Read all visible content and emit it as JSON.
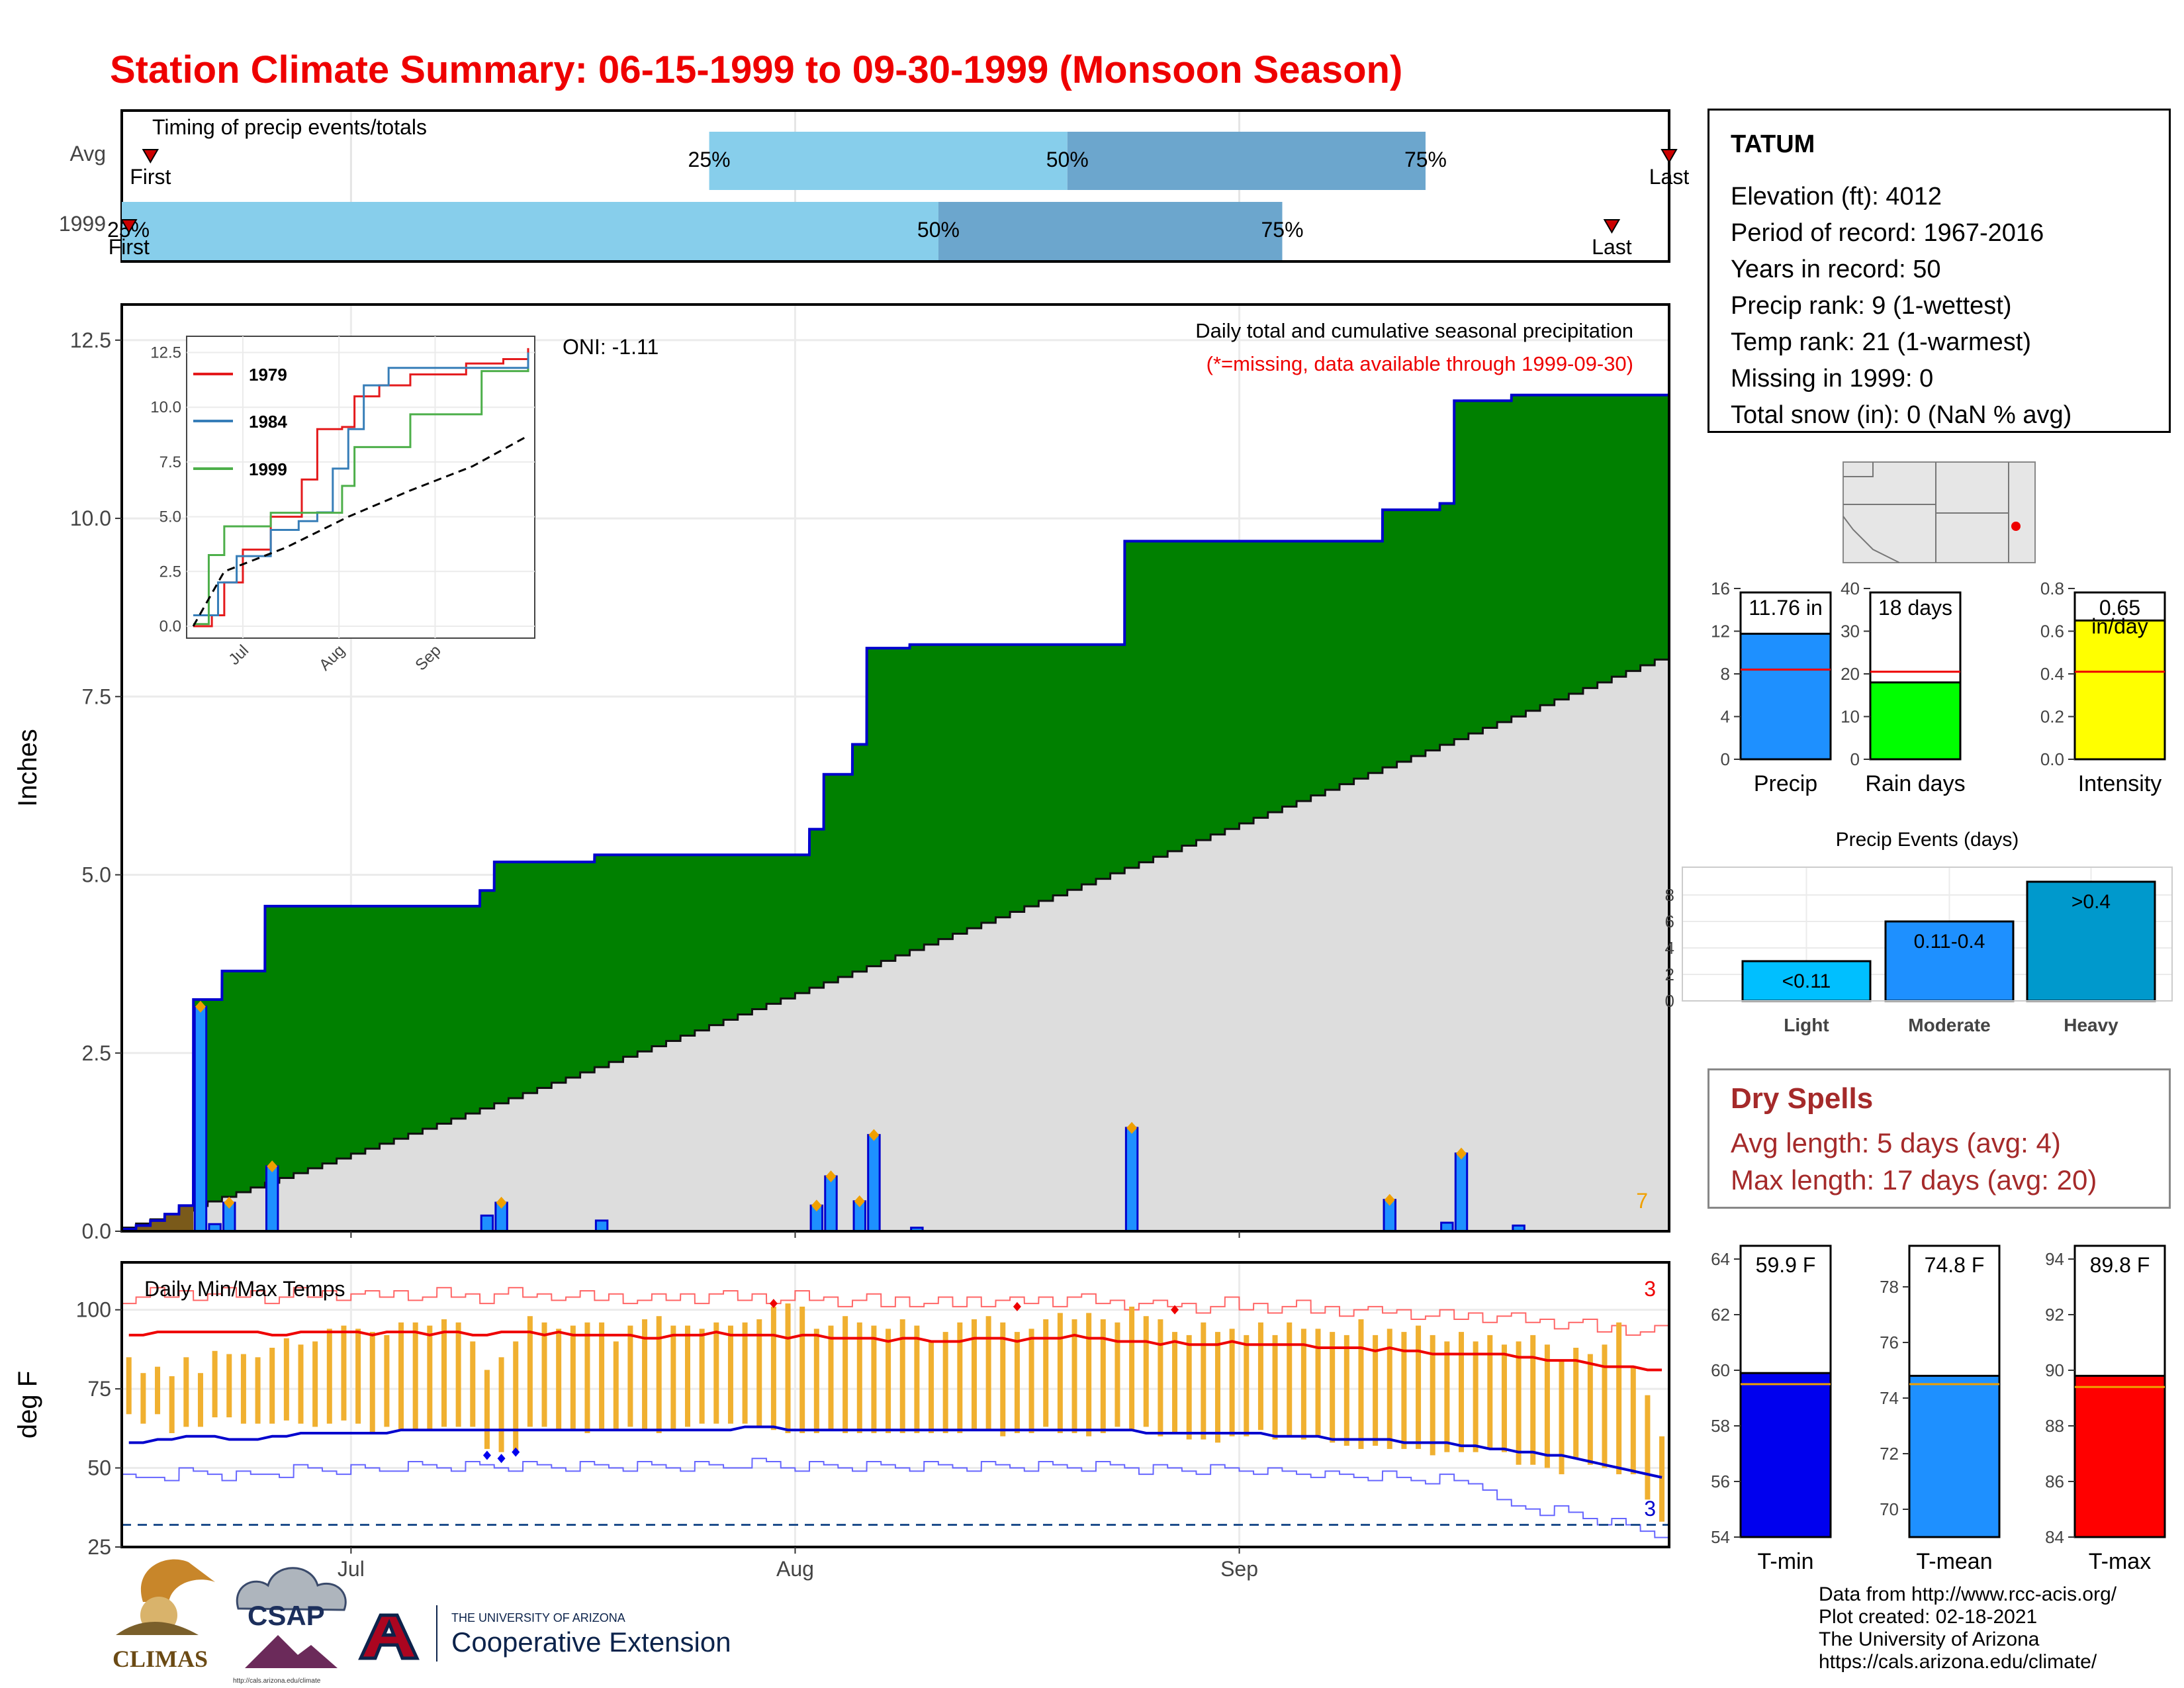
{
  "title": "Station Climate Summary: 06-15-1999 to 09-30-1999 (Monsoon Season)",
  "timing": {
    "title": "Timing of precip events/totals",
    "rows": [
      {
        "label": "Avg",
        "first": "First",
        "last": "Last",
        "p25": "25%",
        "p50": "50%",
        "p75": "75%"
      },
      {
        "label": "1999",
        "first": "First",
        "last": "Last",
        "p25": "25%",
        "p50": "50%",
        "p75": "75%"
      }
    ]
  },
  "precip_panel": {
    "ylabel": "Inches",
    "oni": "ONI: -1.11",
    "note1": "Daily total and cumulative seasonal precipitation",
    "note2": "(*=missing, data available through 1999-09-30)",
    "corner": "7",
    "yticks": [
      "0.0",
      "2.5",
      "5.0",
      "7.5",
      "10.0",
      "12.5"
    ]
  },
  "inset": {
    "yticks": [
      "0.0",
      "2.5",
      "5.0",
      "7.5",
      "10.0",
      "12.5"
    ],
    "xticks": [
      "Jul",
      "Aug",
      "Sep"
    ],
    "legend": [
      "1979",
      "1984",
      "1999"
    ]
  },
  "temp_panel": {
    "title": "Daily Min/Max Temps",
    "ylabel": "deg F",
    "corner_top": "3",
    "corner_bottom": "3",
    "yticks": [
      "25",
      "50",
      "75",
      "100"
    ],
    "xticks": [
      "Jul",
      "Aug",
      "Sep"
    ]
  },
  "station": {
    "name": "TATUM",
    "lines": [
      "Elevation (ft): 4012",
      "Period of record: 1967-2016",
      "Years in record: 50",
      "Precip rank: 9 (1-wettest)",
      "Temp rank: 21 (1-warmest)",
      "Missing in 1999: 0",
      "Total snow (in): 0 (NaN % avg)"
    ]
  },
  "summary_bars": [
    {
      "label": "Precip",
      "value_label": "11.76 in",
      "yticks": [
        "0",
        "4",
        "8",
        "12",
        "16"
      ]
    },
    {
      "label": "Rain days",
      "value_label": "18 days",
      "yticks": [
        "0",
        "10",
        "20",
        "30",
        "40"
      ]
    },
    {
      "label": "Intensity",
      "value_label": "0.65",
      "value_label2": "in/day",
      "yticks": [
        "0.0",
        "0.2",
        "0.4",
        "0.6",
        "0.8"
      ]
    }
  ],
  "events": {
    "title": "Precip Events (days)",
    "yticks": [
      "0",
      "2",
      "4",
      "6",
      "8"
    ],
    "categories": [
      "Light",
      "Moderate",
      "Heavy"
    ],
    "labels": [
      "<0.11",
      "0.11-0.4",
      ">0.4"
    ]
  },
  "dry_spells": {
    "title": "Dry Spells",
    "avg": "Avg length: 5 days (avg: 4)",
    "max": "Max length: 17 days (avg: 20)"
  },
  "temp_bars": [
    {
      "label": "T-min",
      "value_label": "59.9 F",
      "yticks": [
        "54",
        "56",
        "58",
        "60",
        "62",
        "64"
      ]
    },
    {
      "label": "T-mean",
      "value_label": "74.8 F",
      "yticks": [
        "70",
        "72",
        "74",
        "76",
        "78"
      ]
    },
    {
      "label": "T-max",
      "value_label": "89.8 F",
      "yticks": [
        "84",
        "86",
        "88",
        "90",
        "92",
        "94"
      ]
    }
  ],
  "credits": [
    "Data from http://www.rcc-acis.org/",
    "Plot created: 02-18-2021",
    "The University of Arizona",
    "https://cals.arizona.edu/climate/"
  ],
  "logos": {
    "climas": "CLIMAS",
    "csap": "CSAP",
    "csap_url": "http://cals.arizona.edu/climate",
    "ua_line1": "THE UNIVERSITY OF ARIZONA",
    "ua_line2": "Cooperative Extension"
  },
  "chart_data": [
    {
      "type": "bar",
      "name": "timing",
      "rows": [
        "Avg",
        "1999"
      ],
      "first_day": [
        2,
        -1
      ],
      "last_day": [
        108,
        104
      ],
      "p25_day": [
        41,
        -1
      ],
      "p50_day": [
        66,
        57
      ],
      "p75_day": [
        91,
        81
      ]
    },
    {
      "type": "area",
      "ylabel": "Inches",
      "ylim": [
        0,
        13
      ],
      "xlim_days": [
        0,
        108
      ],
      "xticks": {
        "Jul": 16,
        "Aug": 47,
        "Sep": 78
      },
      "daily_precip": [
        [
          0,
          0.03
        ],
        [
          1,
          0.05
        ],
        [
          2,
          0.07
        ],
        [
          3,
          0.09
        ],
        [
          4,
          0.12
        ],
        [
          5,
          3.15
        ],
        [
          6,
          0.1
        ],
        [
          7,
          0.4
        ],
        [
          10,
          0.91
        ],
        [
          25,
          0.22
        ],
        [
          26,
          0.4
        ],
        [
          33,
          0.15
        ],
        [
          48,
          0.36
        ],
        [
          49,
          0.77
        ],
        [
          51,
          0.42
        ],
        [
          52,
          1.35
        ],
        [
          55,
          0.05
        ],
        [
          70,
          1.45
        ],
        [
          88,
          0.44
        ],
        [
          92,
          0.12
        ],
        [
          93,
          1.09
        ],
        [
          97,
          0.08
        ]
      ],
      "cumulative_1999_steps": [
        [
          0,
          0.03
        ],
        [
          1,
          0.08
        ],
        [
          2,
          0.15
        ],
        [
          3,
          0.24
        ],
        [
          4,
          0.36
        ],
        [
          5,
          3.25
        ],
        [
          7,
          3.65
        ],
        [
          10,
          4.56
        ],
        [
          25,
          4.78
        ],
        [
          26,
          5.18
        ],
        [
          33,
          5.28
        ],
        [
          48,
          5.64
        ],
        [
          49,
          6.41
        ],
        [
          51,
          6.83
        ],
        [
          52,
          8.18
        ],
        [
          55,
          8.23
        ],
        [
          70,
          9.68
        ],
        [
          88,
          10.12
        ],
        [
          92,
          10.21
        ],
        [
          93,
          11.65
        ],
        [
          97,
          11.73
        ],
        [
          108,
          11.76
        ]
      ],
      "cumulative_avg_end": 8.1
    },
    {
      "type": "line",
      "name": "inset_cumulative",
      "series": [
        {
          "name": "1979",
          "points": [
            [
              0,
              0
            ],
            [
              6,
              0.5
            ],
            [
              10,
              2.0
            ],
            [
              16,
              3.5
            ],
            [
              25,
              5.0
            ],
            [
              35,
              6.7
            ],
            [
              40,
              9.0
            ],
            [
              48,
              9.1
            ],
            [
              52,
              10.5
            ],
            [
              60,
              11.0
            ],
            [
              70,
              11.5
            ],
            [
              88,
              12.0
            ],
            [
              100,
              12.2
            ],
            [
              108,
              12.7
            ]
          ]
        },
        {
          "name": "1984",
          "points": [
            [
              0,
              0.5
            ],
            [
              8,
              2.0
            ],
            [
              14,
              3.2
            ],
            [
              25,
              4.4
            ],
            [
              34,
              4.8
            ],
            [
              40,
              5.2
            ],
            [
              45,
              7.2
            ],
            [
              50,
              9.0
            ],
            [
              55,
              11.0
            ],
            [
              63,
              11.8
            ],
            [
              70,
              11.8
            ],
            [
              90,
              11.8
            ],
            [
              108,
              12.5
            ]
          ]
        },
        {
          "name": "1999",
          "points": [
            [
              0,
              0.1
            ],
            [
              5,
              3.25
            ],
            [
              10,
              4.56
            ],
            [
              25,
              5.18
            ],
            [
              48,
              6.41
            ],
            [
              52,
              8.18
            ],
            [
              70,
              9.68
            ],
            [
              93,
              11.65
            ],
            [
              108,
              11.76
            ]
          ]
        },
        {
          "name": "",
          "points": [
            [
              0,
              0
            ],
            [
              10,
              2.5
            ],
            [
              30,
              3.6
            ],
            [
              50,
              5.0
            ],
            [
              70,
              6.2
            ],
            [
              90,
              7.3
            ],
            [
              108,
              8.7
            ]
          ]
        }
      ]
    },
    {
      "type": "bar",
      "name": "daily_temps",
      "ylabel": "deg F",
      "ylim": [
        25,
        115
      ],
      "freeze_line": 32,
      "tmax_avg": [
        92,
        92,
        93,
        93,
        93,
        93,
        93,
        93,
        93,
        93,
        92,
        92,
        93,
        93,
        93,
        93,
        93,
        92,
        93,
        93,
        93,
        92,
        93,
        93,
        92,
        92,
        93,
        93,
        93,
        92,
        93,
        92,
        92,
        92,
        92,
        92,
        91,
        91,
        92,
        92,
        92,
        93,
        92,
        92,
        92,
        92,
        91,
        92,
        92,
        91,
        91,
        91,
        91,
        90,
        91,
        91,
        90,
        90,
        90,
        91,
        91,
        91,
        90,
        91,
        91,
        91,
        92,
        91,
        91,
        90,
        90,
        90,
        89,
        90,
        89,
        89,
        89,
        90,
        89,
        89,
        89,
        89,
        89,
        88,
        88,
        88,
        88,
        87,
        88,
        87,
        87,
        86,
        86,
        86,
        86,
        86,
        86,
        85,
        85,
        84,
        84,
        84,
        83,
        82,
        82,
        82,
        81,
        81
      ],
      "tmin_avg": [
        58,
        58,
        59,
        59,
        60,
        60,
        60,
        59,
        59,
        59,
        60,
        60,
        61,
        61,
        61,
        61,
        61,
        61,
        61,
        62,
        62,
        62,
        62,
        62,
        62,
        62,
        62,
        62,
        62,
        62,
        62,
        62,
        62,
        62,
        62,
        62,
        62,
        62,
        62,
        62,
        62,
        62,
        62,
        63,
        63,
        63,
        62,
        62,
        62,
        62,
        62,
        62,
        62,
        62,
        62,
        62,
        62,
        62,
        62,
        62,
        62,
        62,
        62,
        62,
        62,
        62,
        62,
        62,
        62,
        62,
        62,
        61,
        61,
        61,
        61,
        61,
        61,
        61,
        61,
        61,
        60,
        60,
        60,
        60,
        59,
        59,
        59,
        59,
        59,
        58,
        58,
        58,
        58,
        57,
        57,
        56,
        56,
        55,
        55,
        54,
        54,
        53,
        52,
        51,
        50,
        49,
        48,
        47
      ],
      "tmax_1999": [
        85,
        80,
        82,
        79,
        85,
        80,
        87,
        86,
        86,
        85,
        88,
        91,
        89,
        90,
        94,
        95,
        94,
        93,
        92,
        96,
        96,
        95,
        97,
        96,
        90,
        81,
        85,
        90,
        98,
        96,
        94,
        95,
        96,
        96,
        90,
        95,
        97,
        98,
        95,
        95,
        94,
        96,
        95,
        96,
        97,
        101,
        102,
        101,
        94,
        95,
        98,
        96,
        95,
        94,
        97,
        95,
        90,
        93,
        96,
        97,
        98,
        96,
        93,
        94,
        97,
        99,
        97,
        99,
        97,
        96,
        101,
        98,
        97,
        93,
        92,
        96,
        93,
        94,
        92,
        96,
        92,
        96,
        94,
        94,
        93,
        92,
        97,
        92,
        94,
        93,
        95,
        92,
        90,
        93,
        90,
        92,
        89,
        90,
        92,
        89,
        84,
        88,
        86,
        89,
        96,
        82,
        73,
        60
      ],
      "tmin_1999": [
        67,
        64,
        67,
        61,
        63,
        63,
        66,
        66,
        64,
        64,
        64,
        65,
        64,
        63,
        64,
        65,
        64,
        61,
        63,
        62,
        62,
        62,
        63,
        63,
        63,
        56,
        55,
        55,
        63,
        63,
        62,
        62,
        61,
        62,
        62,
        63,
        62,
        61,
        62,
        63,
        64,
        64,
        64,
        64,
        63,
        62,
        61,
        61,
        61,
        62,
        61,
        61,
        61,
        61,
        61,
        61,
        61,
        61,
        61,
        62,
        62,
        60,
        61,
        61,
        63,
        61,
        61,
        60,
        61,
        63,
        62,
        63,
        60,
        61,
        59,
        59,
        58,
        60,
        60,
        62,
        59,
        60,
        59,
        60,
        58,
        57,
        56,
        57,
        56,
        56,
        56,
        54,
        55,
        55,
        55,
        56,
        55,
        51,
        51,
        50,
        48,
        53,
        51,
        50,
        48,
        48,
        40,
        33
      ]
    },
    {
      "type": "bar",
      "name": "season_totals",
      "categories": [
        "Precip",
        "Rain days",
        "Intensity"
      ],
      "values": [
        11.76,
        18,
        0.65
      ],
      "averages": [
        8.4,
        20.5,
        0.41
      ],
      "ylim": [
        [
          0,
          16
        ],
        [
          0,
          40
        ],
        [
          0,
          0.8
        ]
      ]
    },
    {
      "type": "bar",
      "name": "precip_events",
      "categories": [
        "Light",
        "Moderate",
        "Heavy"
      ],
      "values": [
        3,
        6,
        9
      ],
      "ylim": [
        0,
        9
      ]
    },
    {
      "type": "bar",
      "name": "season_temps",
      "categories": [
        "T-min",
        "T-mean",
        "T-max"
      ],
      "values": [
        59.9,
        74.8,
        89.8
      ],
      "averages": [
        59.5,
        74.5,
        89.4
      ],
      "ylim": [
        [
          54,
          64
        ],
        [
          69,
          79
        ],
        [
          84,
          94
        ]
      ]
    }
  ]
}
